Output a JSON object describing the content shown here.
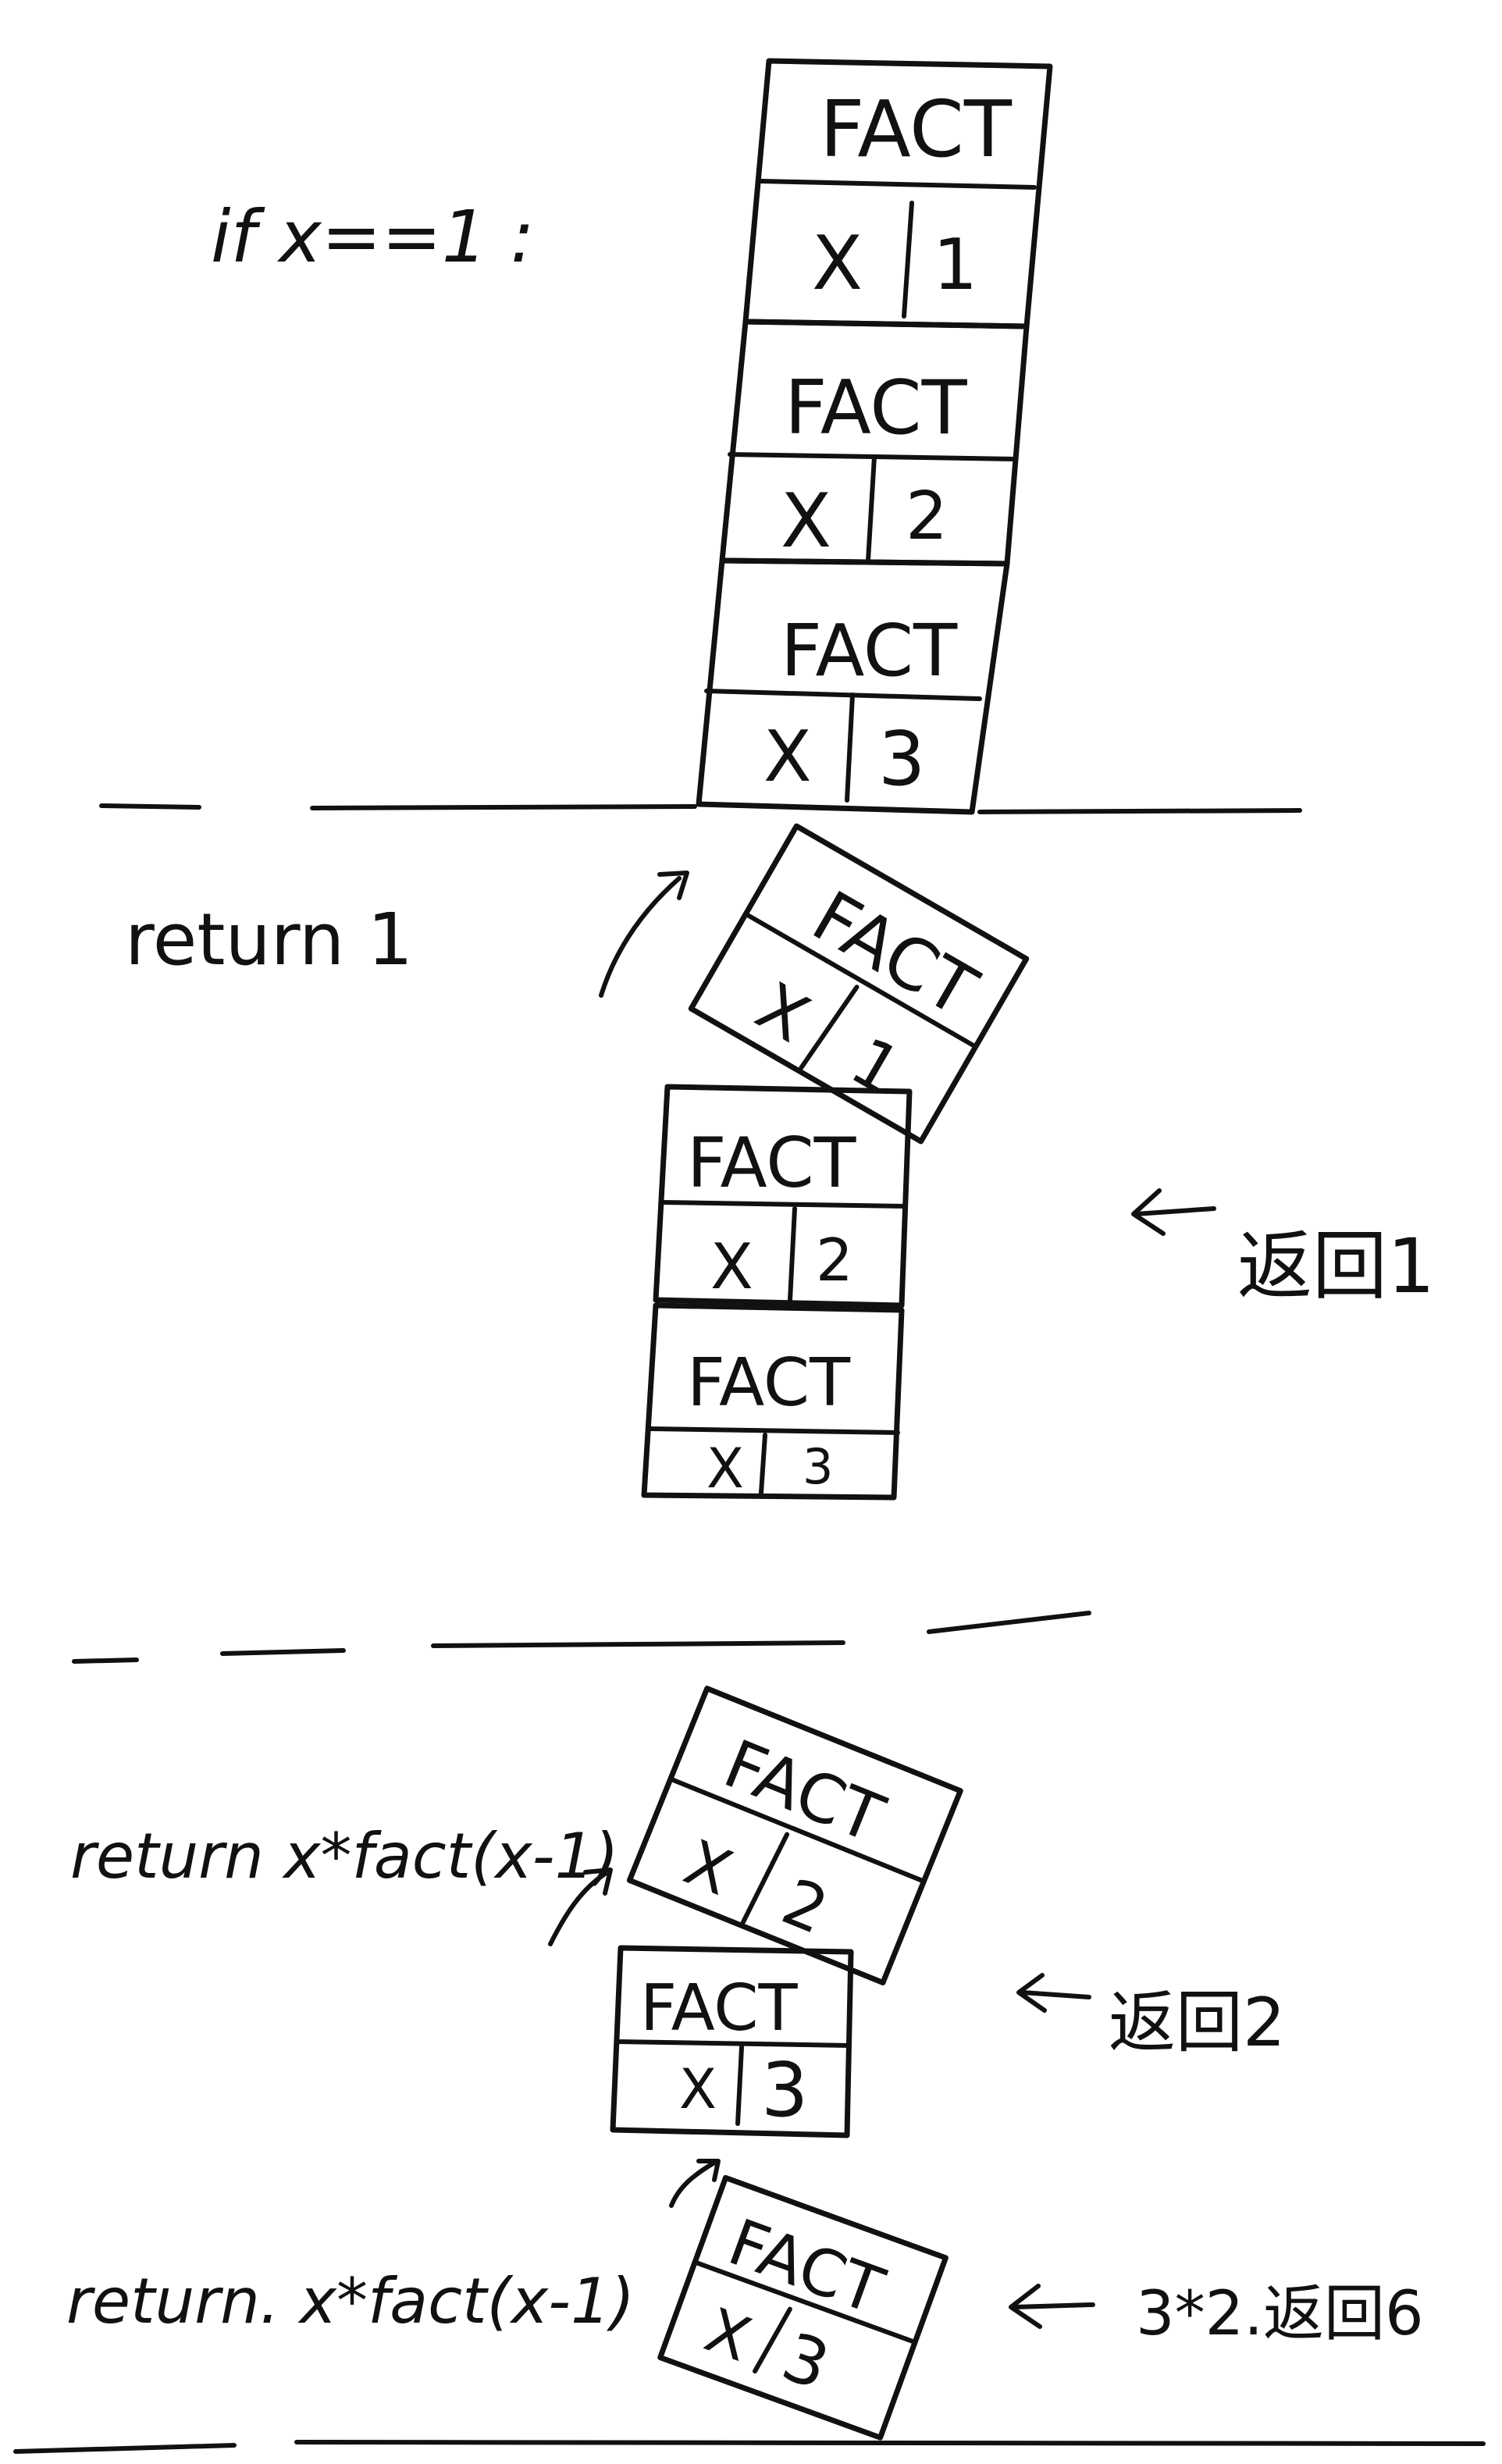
{
  "condition_text": "if x==1 :",
  "frame_label": "FACT",
  "var_label": "X",
  "section1": {
    "stack_values": [
      "1",
      "2",
      "3"
    ]
  },
  "section2": {
    "return_text": "return 1",
    "popped_value": "1",
    "stack_values": [
      "2",
      "3"
    ],
    "result_note": "返回1"
  },
  "section3": {
    "return_text_top": "return x*fact(x-1)",
    "popped_value_top": "2",
    "stack_values": [
      "3"
    ],
    "result_note_top": "返回2",
    "return_text_bottom": "return. x*fact(x-1)",
    "popped_value_bottom": "3",
    "result_note_bottom": "3*2.返回6"
  }
}
